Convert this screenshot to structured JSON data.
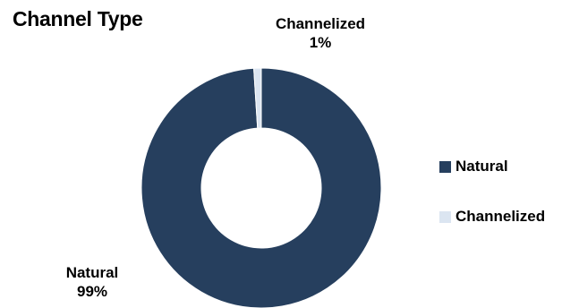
{
  "chart_data": {
    "type": "pie",
    "title": "Channel Type",
    "subtitle": "",
    "categories": [
      "Natural",
      "Channelized"
    ],
    "values": [
      99,
      1
    ],
    "colors": [
      "#263f5e",
      "#dbe5f1"
    ],
    "donut": true,
    "data_labels": [
      {
        "category": "Natural",
        "value_text": "99%"
      },
      {
        "category": "Channelized",
        "value_text": "1%"
      }
    ],
    "legend": {
      "position": "right",
      "entries": [
        "Natural",
        "Channelized"
      ]
    }
  }
}
